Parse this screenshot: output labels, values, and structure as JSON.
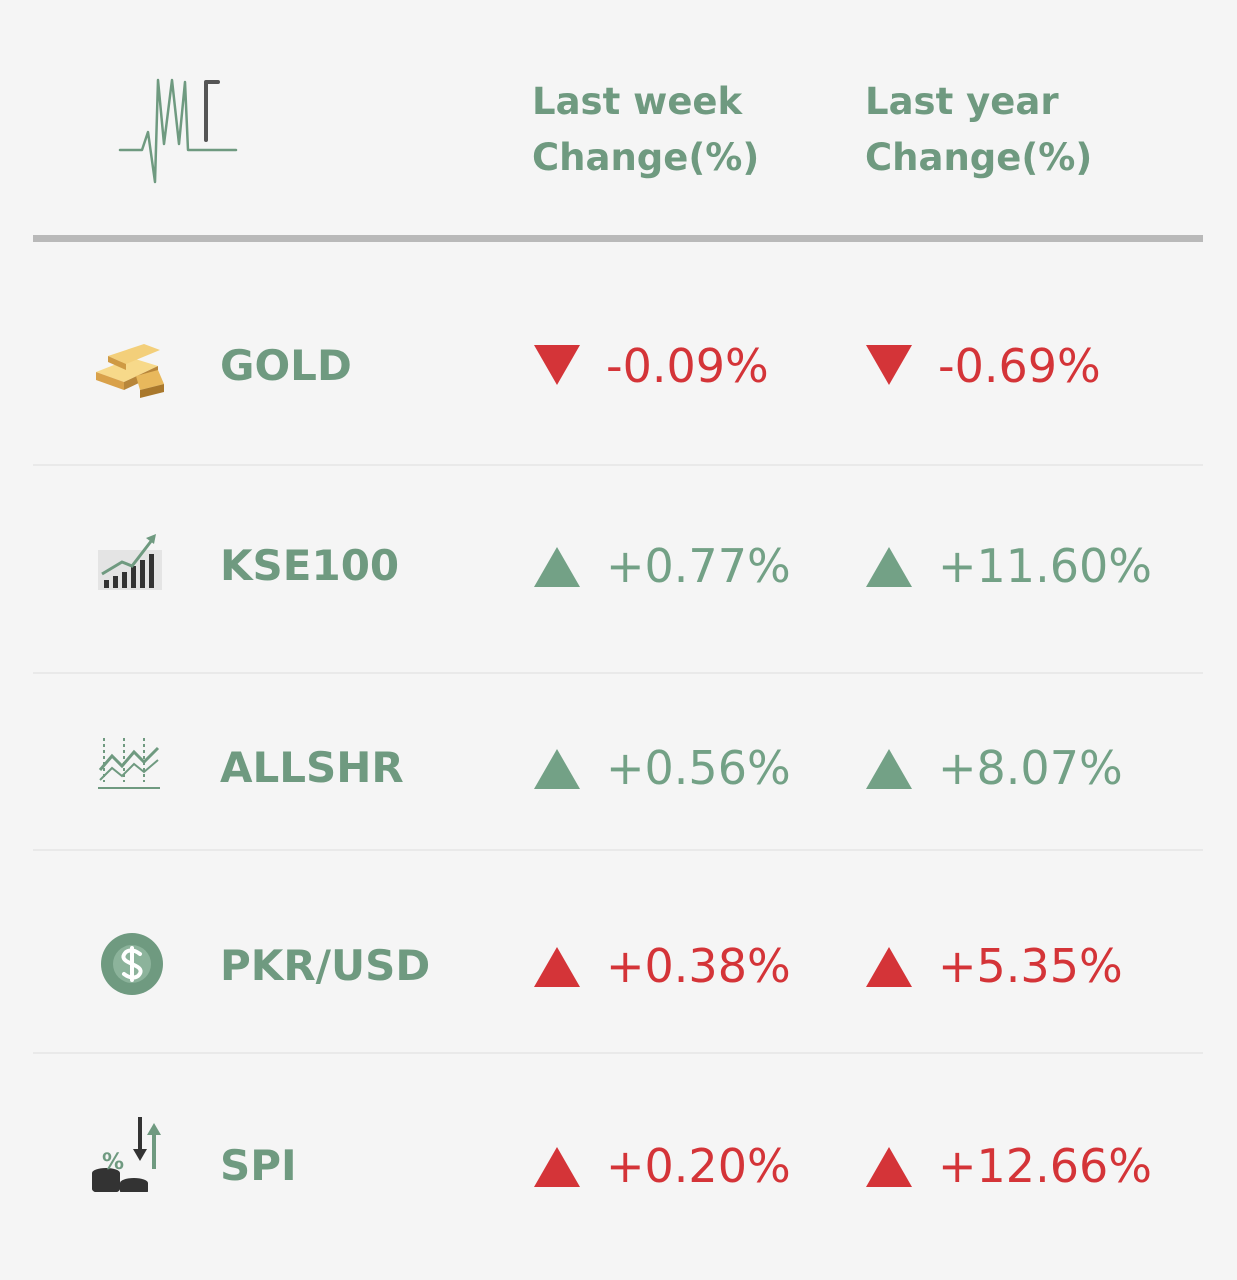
{
  "logo": {
    "text": "MP"
  },
  "header": {
    "week_line1": "Last week",
    "week_line2": "Change(%)",
    "year_line1": "Last year",
    "year_line2": "Change(%)"
  },
  "colors": {
    "accent": "#6f9a80",
    "down": "#d43438",
    "up_green": "#73a186"
  },
  "rows": [
    {
      "name": "GOLD",
      "icon": "gold-bars-icon",
      "week": {
        "value": "-0.09%",
        "direction": "down",
        "color": "red"
      },
      "year": {
        "value": "-0.69%",
        "direction": "down",
        "color": "red"
      }
    },
    {
      "name": "KSE100",
      "icon": "rising-bar-chart-icon",
      "week": {
        "value": "+0.77%",
        "direction": "up",
        "color": "green"
      },
      "year": {
        "value": "+11.60%",
        "direction": "up",
        "color": "green"
      }
    },
    {
      "name": "ALLSHR",
      "icon": "line-chart-icon",
      "week": {
        "value": "+0.56%",
        "direction": "up",
        "color": "green"
      },
      "year": {
        "value": "+8.07%",
        "direction": "up",
        "color": "green"
      }
    },
    {
      "name": "PKR/USD",
      "icon": "dollar-coin-icon",
      "week": {
        "value": "+0.38%",
        "direction": "up",
        "color": "red"
      },
      "year": {
        "value": "+5.35%",
        "direction": "up",
        "color": "red"
      }
    },
    {
      "name": "SPI",
      "icon": "percent-coins-icon",
      "week": {
        "value": "+0.20%",
        "direction": "up",
        "color": "red"
      },
      "year": {
        "value": "+12.66%",
        "direction": "up",
        "color": "red"
      }
    }
  ]
}
